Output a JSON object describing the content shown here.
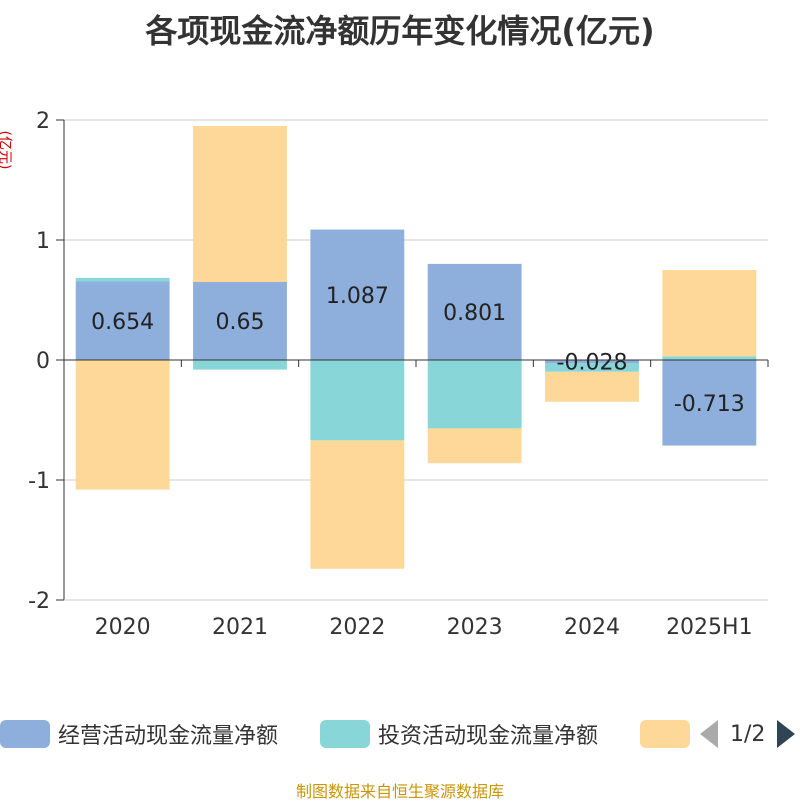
{
  "title": "各项现金流净额历年变化情况(亿元)",
  "unit_label": "(亿元)",
  "source": "制图数据来自恒生聚源数据库",
  "pager": {
    "text": "1/2"
  },
  "legend": [
    {
      "label": "经营活动现金流量净额",
      "color": "#8eaedb"
    },
    {
      "label": "投资活动现金流量净额",
      "color": "#88d6d8"
    },
    {
      "label": "",
      "color": "#fed899"
    }
  ],
  "chart_data": {
    "type": "bar",
    "stacked": true,
    "categories": [
      "2020",
      "2021",
      "2022",
      "2023",
      "2024",
      "2025H1"
    ],
    "ylim": [
      -2,
      2
    ],
    "yticks": [
      2,
      1,
      0,
      -1,
      -2
    ],
    "grid": true,
    "legend_position": "bottom",
    "series": [
      {
        "name": "经营活动现金流量净额",
        "color": "#8eaedb",
        "values": [
          0.654,
          0.65,
          1.087,
          0.801,
          -0.028,
          -0.713
        ],
        "labels": [
          "0.654",
          "0.65",
          "1.087",
          "0.801",
          "-0.028",
          "-0.713"
        ]
      },
      {
        "name": "投资活动现金流量净额",
        "color": "#88d6d8",
        "values": [
          0.03,
          -0.08,
          -0.67,
          -0.57,
          -0.07,
          0.03
        ]
      },
      {
        "color": "#fed899",
        "values": [
          -1.08,
          1.3,
          -1.07,
          -0.29,
          -0.25,
          0.72
        ]
      }
    ]
  }
}
